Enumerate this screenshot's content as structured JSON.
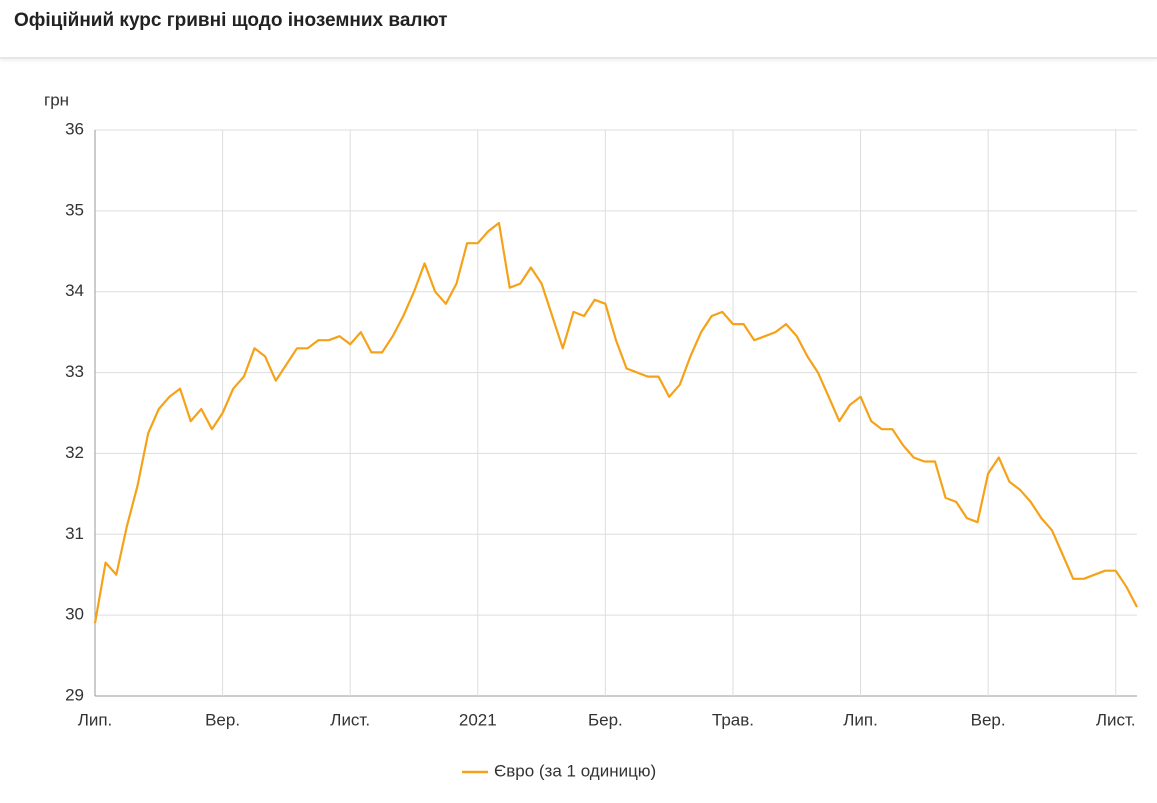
{
  "chart_data": {
    "type": "line",
    "title": "Офіційний курс гривні щодо іноземних валют",
    "y_label": "грн",
    "categories": [
      "Лип.",
      null,
      null,
      null,
      null,
      null,
      null,
      null,
      null,
      null,
      null,
      null,
      "Вер.",
      null,
      null,
      null,
      null,
      null,
      null,
      null,
      null,
      null,
      null,
      null,
      "Лист.",
      null,
      null,
      null,
      null,
      null,
      null,
      null,
      null,
      null,
      null,
      null,
      "2021",
      null,
      null,
      null,
      null,
      null,
      null,
      null,
      null,
      null,
      null,
      null,
      "Бер.",
      null,
      null,
      null,
      null,
      null,
      null,
      null,
      null,
      null,
      null,
      null,
      "Трав.",
      null,
      null,
      null,
      null,
      null,
      null,
      null,
      null,
      null,
      null,
      null,
      "Лип.",
      null,
      null,
      null,
      null,
      null,
      null,
      null,
      null,
      null,
      null,
      null,
      "Вер.",
      null,
      null,
      null,
      null,
      null,
      null,
      null,
      null,
      null,
      null,
      null,
      "Лист.",
      null,
      null
    ],
    "series": [
      {
        "name": "Євро (за 1 одиницю)",
        "color": "#f5a219",
        "values": [
          29.9,
          30.65,
          30.5,
          31.1,
          31.6,
          32.25,
          32.55,
          32.7,
          32.8,
          32.4,
          32.55,
          32.3,
          32.5,
          32.8,
          32.95,
          33.3,
          33.2,
          32.9,
          33.1,
          33.3,
          33.3,
          33.4,
          33.4,
          33.45,
          33.35,
          33.5,
          33.25,
          33.25,
          33.45,
          33.7,
          34.0,
          34.35,
          34.0,
          33.85,
          34.1,
          34.6,
          34.6,
          34.75,
          34.85,
          34.05,
          34.1,
          34.3,
          34.1,
          33.7,
          33.3,
          33.75,
          33.7,
          33.9,
          33.85,
          33.4,
          33.05,
          33.0,
          32.95,
          32.95,
          32.7,
          32.85,
          33.2,
          33.5,
          33.7,
          33.75,
          33.6,
          33.6,
          33.4,
          33.45,
          33.5,
          33.6,
          33.45,
          33.2,
          33.0,
          32.7,
          32.4,
          32.6,
          32.7,
          32.4,
          32.3,
          32.3,
          32.1,
          31.95,
          31.9,
          31.9,
          31.45,
          31.4,
          31.2,
          31.15,
          31.75,
          31.95,
          31.65,
          31.55,
          31.4,
          31.2,
          31.05,
          30.75,
          30.45,
          30.45,
          30.5,
          30.55,
          30.55,
          30.35,
          30.1
        ]
      }
    ],
    "ylim": [
      29,
      36
    ],
    "yticks": [
      29,
      30,
      31,
      32,
      33,
      34,
      35,
      36
    ],
    "grid": true
  }
}
